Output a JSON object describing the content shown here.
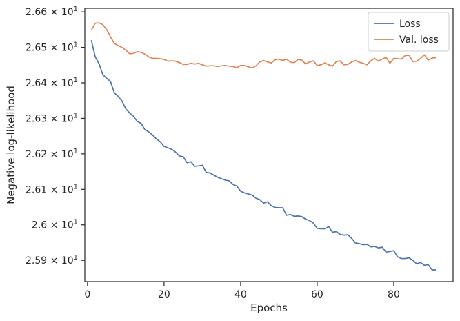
{
  "chart_data": {
    "type": "line",
    "xlabel": "Epochs",
    "ylabel": "Negative log-likelihood",
    "xlim": [
      -0.7,
      95.5
    ],
    "ylim": [
      25.84,
      26.61
    ],
    "x_ticks": [
      0,
      20,
      40,
      60,
      80
    ],
    "y_ticks": [
      {
        "value": 25.9,
        "mantissa": "2.59",
        "base": "× 10",
        "exp": "1"
      },
      {
        "value": 26.0,
        "mantissa": "2.6",
        "base": "× 10",
        "exp": "1"
      },
      {
        "value": 26.1,
        "mantissa": "2.61",
        "base": "× 10",
        "exp": "1"
      },
      {
        "value": 26.2,
        "mantissa": "2.62",
        "base": "× 10",
        "exp": "1"
      },
      {
        "value": 26.3,
        "mantissa": "2.63",
        "base": "× 10",
        "exp": "1"
      },
      {
        "value": 26.4,
        "mantissa": "2.64",
        "base": "× 10",
        "exp": "1"
      },
      {
        "value": 26.5,
        "mantissa": "2.65",
        "base": "× 10",
        "exp": "1"
      },
      {
        "value": 26.6,
        "mantissa": "2.66",
        "base": "× 10",
        "exp": "1"
      }
    ],
    "grid": false,
    "legend_position": "top-right",
    "series": [
      {
        "name": "Loss",
        "color": "#4c72b0",
        "x": [
          1,
          2,
          3,
          4,
          5,
          6,
          7,
          8,
          9,
          10,
          11,
          12,
          13,
          14,
          15,
          16,
          17,
          18,
          19,
          20,
          21,
          22,
          23,
          24,
          25,
          26,
          27,
          28,
          29,
          30,
          31,
          32,
          33,
          34,
          35,
          36,
          37,
          38,
          39,
          40,
          41,
          42,
          43,
          44,
          45,
          46,
          47,
          48,
          49,
          50,
          51,
          52,
          53,
          54,
          55,
          56,
          57,
          58,
          59,
          60,
          61,
          62,
          63,
          64,
          65,
          66,
          67,
          68,
          69,
          70,
          71,
          72,
          73,
          74,
          75,
          76,
          77,
          78,
          79,
          80,
          81,
          82,
          83,
          84,
          85,
          86,
          87,
          88,
          89,
          90,
          91
        ],
        "values": [
          26.52,
          26.474,
          26.454,
          26.423,
          26.413,
          26.404,
          26.372,
          26.362,
          26.349,
          26.327,
          26.315,
          26.306,
          26.291,
          26.286,
          26.268,
          26.262,
          26.253,
          26.242,
          26.234,
          26.221,
          26.217,
          26.213,
          26.205,
          26.194,
          26.192,
          26.175,
          26.178,
          26.165,
          26.166,
          26.168,
          26.148,
          26.146,
          26.14,
          26.134,
          26.13,
          26.126,
          26.124,
          26.114,
          26.109,
          26.095,
          26.09,
          26.087,
          26.084,
          26.075,
          26.071,
          26.061,
          26.065,
          26.054,
          26.049,
          26.048,
          26.048,
          26.027,
          26.029,
          26.024,
          26.025,
          26.023,
          26.016,
          26.012,
          26.005,
          25.99,
          25.989,
          25.989,
          25.995,
          25.979,
          25.981,
          25.973,
          25.971,
          25.972,
          25.962,
          25.949,
          25.947,
          25.944,
          25.945,
          25.938,
          25.939,
          25.935,
          25.937,
          25.923,
          25.925,
          25.927,
          25.91,
          25.905,
          25.905,
          25.907,
          25.9,
          25.89,
          25.894,
          25.886,
          25.888,
          25.873,
          25.873
        ]
      },
      {
        "name": "Val. loss",
        "color": "#dd8452",
        "x": [
          1,
          2,
          3,
          4,
          5,
          6,
          7,
          8,
          9,
          10,
          11,
          12,
          13,
          14,
          15,
          16,
          17,
          18,
          19,
          20,
          21,
          22,
          23,
          24,
          25,
          26,
          27,
          28,
          29,
          30,
          31,
          32,
          33,
          34,
          35,
          36,
          37,
          38,
          39,
          40,
          41,
          42,
          43,
          44,
          45,
          46,
          47,
          48,
          49,
          50,
          51,
          52,
          53,
          54,
          55,
          56,
          57,
          58,
          59,
          60,
          61,
          62,
          63,
          64,
          65,
          66,
          67,
          68,
          69,
          70,
          71,
          72,
          73,
          74,
          75,
          76,
          77,
          78,
          79,
          80,
          81,
          82,
          83,
          84,
          85,
          86,
          87,
          88,
          89,
          90,
          91
        ],
        "values": [
          26.548,
          26.568,
          26.569,
          26.564,
          26.55,
          26.53,
          26.511,
          26.505,
          26.5,
          26.492,
          26.482,
          26.483,
          26.488,
          26.486,
          26.481,
          26.473,
          26.469,
          26.469,
          26.468,
          26.466,
          26.461,
          26.462,
          26.461,
          26.457,
          26.452,
          26.452,
          26.455,
          26.453,
          26.455,
          26.451,
          26.447,
          26.448,
          26.448,
          26.446,
          26.448,
          26.449,
          26.447,
          26.446,
          26.443,
          26.449,
          26.449,
          26.445,
          26.442,
          26.448,
          26.459,
          26.463,
          26.459,
          26.456,
          26.465,
          26.467,
          26.463,
          26.467,
          26.458,
          26.457,
          26.466,
          26.464,
          26.453,
          26.459,
          26.462,
          26.449,
          26.451,
          26.456,
          26.451,
          26.447,
          26.46,
          26.462,
          26.451,
          26.452,
          26.459,
          26.463,
          26.458,
          26.455,
          26.451,
          26.462,
          26.469,
          26.461,
          26.467,
          26.472,
          26.455,
          26.469,
          26.468,
          26.467,
          26.477,
          26.478,
          26.46,
          26.461,
          26.469,
          26.479,
          26.464,
          26.47,
          26.471
        ]
      }
    ]
  }
}
